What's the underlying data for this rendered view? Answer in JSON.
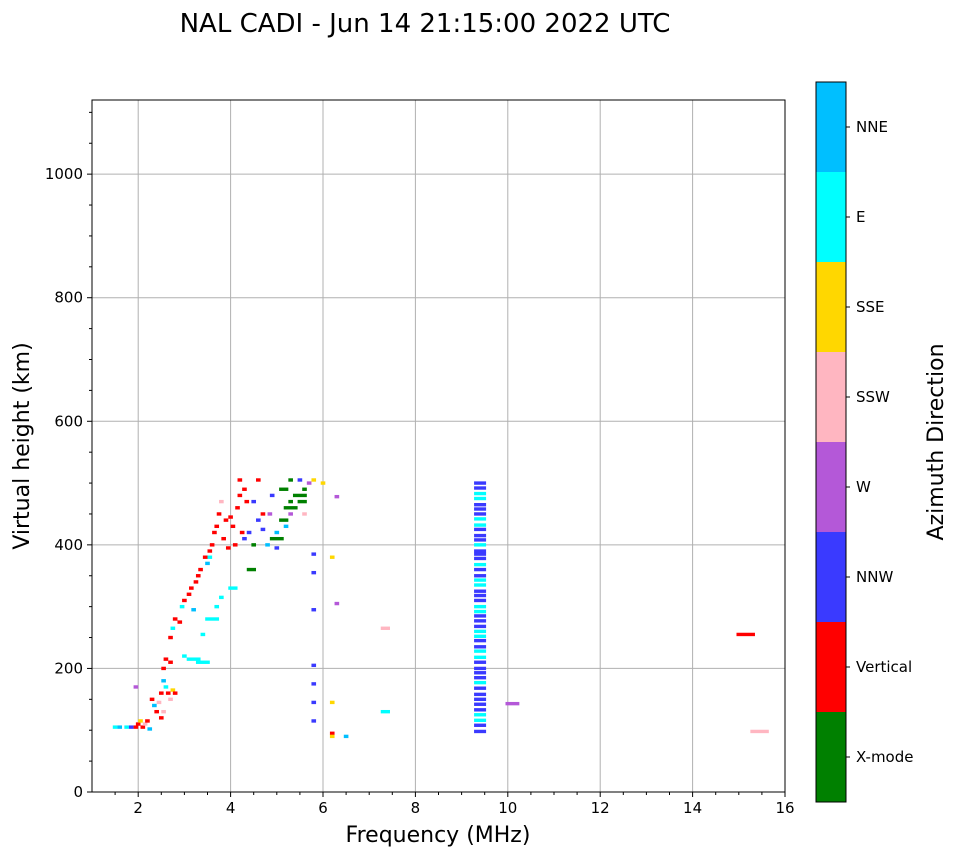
{
  "chart_data": {
    "type": "scatter",
    "title": "NAL CADI - Jun 14 21:15:00 2022 UTC",
    "xlabel": "Frequency (MHz)",
    "ylabel": "Virtual height (km)",
    "xlim": [
      1,
      16
    ],
    "ylim": [
      0,
      1120
    ],
    "xticks": [
      2,
      4,
      6,
      8,
      10,
      12,
      14,
      16
    ],
    "yticks": [
      0,
      200,
      400,
      600,
      800,
      1000
    ],
    "grid": true,
    "colorbar": {
      "label": "Azimuth Direction",
      "categories": [
        "X-mode",
        "Vertical",
        "NNW",
        "W",
        "SSW",
        "SSE",
        "E",
        "NNE"
      ],
      "colors": [
        "#008000",
        "#ff0000",
        "#3a3aff",
        "#b458d8",
        "#ffb6c1",
        "#ffd700",
        "#00ffff",
        "#00bfff"
      ]
    },
    "points_format": "[frequency_MHz, height_km, category_index, cells_wide]",
    "points": [
      [
        1.5,
        105,
        6,
        1
      ],
      [
        1.6,
        105,
        7,
        1
      ],
      [
        1.75,
        105,
        6,
        1
      ],
      [
        1.85,
        105,
        2,
        1
      ],
      [
        1.95,
        105,
        1,
        1
      ],
      [
        2.0,
        110,
        1,
        1
      ],
      [
        2.05,
        115,
        5,
        1
      ],
      [
        2.1,
        105,
        1,
        1
      ],
      [
        2.15,
        110,
        4,
        1
      ],
      [
        2.2,
        115,
        1,
        1
      ],
      [
        2.25,
        102,
        7,
        1
      ],
      [
        1.95,
        170,
        3,
        1
      ],
      [
        2.3,
        150,
        1,
        1
      ],
      [
        2.35,
        140,
        7,
        1
      ],
      [
        2.4,
        130,
        1,
        1
      ],
      [
        2.45,
        145,
        4,
        1
      ],
      [
        2.5,
        160,
        1,
        1
      ],
      [
        2.5,
        120,
        1,
        1
      ],
      [
        2.55,
        130,
        4,
        1
      ],
      [
        2.55,
        200,
        1,
        1
      ],
      [
        2.55,
        180,
        7,
        1
      ],
      [
        2.6,
        170,
        6,
        1
      ],
      [
        2.65,
        160,
        1,
        1
      ],
      [
        2.7,
        150,
        4,
        1
      ],
      [
        2.6,
        215,
        1,
        1
      ],
      [
        2.7,
        210,
        1,
        1
      ],
      [
        2.75,
        165,
        5,
        1
      ],
      [
        2.8,
        160,
        1,
        1
      ],
      [
        2.7,
        250,
        1,
        1
      ],
      [
        2.75,
        265,
        6,
        1
      ],
      [
        2.8,
        280,
        1,
        1
      ],
      [
        2.9,
        275,
        1,
        1
      ],
      [
        2.95,
        300,
        6,
        1
      ],
      [
        3.0,
        310,
        1,
        1
      ],
      [
        3.1,
        320,
        1,
        1
      ],
      [
        3.15,
        330,
        1,
        1
      ],
      [
        3.2,
        295,
        7,
        1
      ],
      [
        3.25,
        340,
        1,
        1
      ],
      [
        3.3,
        350,
        1,
        1
      ],
      [
        3.35,
        360,
        1,
        1
      ],
      [
        3.45,
        380,
        1,
        1
      ],
      [
        3.5,
        370,
        7,
        1
      ],
      [
        3.55,
        390,
        1,
        1
      ],
      [
        3.6,
        400,
        1,
        1
      ],
      [
        3.65,
        420,
        1,
        1
      ],
      [
        3.7,
        430,
        1,
        1
      ],
      [
        3.75,
        450,
        1,
        1
      ],
      [
        3.8,
        470,
        4,
        1
      ],
      [
        3.9,
        440,
        1,
        1
      ],
      [
        4.0,
        445,
        1,
        1
      ],
      [
        4.05,
        430,
        1,
        1
      ],
      [
        4.1,
        400,
        1,
        1
      ],
      [
        4.15,
        460,
        1,
        1
      ],
      [
        4.2,
        480,
        1,
        1
      ],
      [
        4.3,
        490,
        1,
        1
      ],
      [
        4.35,
        470,
        1,
        1
      ],
      [
        3.85,
        410,
        1,
        1
      ],
      [
        3.95,
        395,
        1,
        1
      ],
      [
        4.25,
        420,
        1,
        1
      ],
      [
        3.0,
        220,
        6,
        1
      ],
      [
        3.1,
        215,
        6,
        3
      ],
      [
        3.3,
        210,
        6,
        3
      ],
      [
        3.5,
        280,
        6,
        3
      ],
      [
        3.7,
        300,
        6,
        1
      ],
      [
        3.8,
        315,
        6,
        1
      ],
      [
        4.0,
        330,
        6,
        2
      ],
      [
        3.55,
        380,
        6,
        1
      ],
      [
        3.4,
        255,
        6,
        1
      ],
      [
        4.3,
        410,
        2,
        1
      ],
      [
        4.4,
        420,
        2,
        1
      ],
      [
        4.5,
        400,
        0,
        1
      ],
      [
        4.4,
        360,
        0,
        2
      ],
      [
        4.6,
        440,
        2,
        1
      ],
      [
        4.7,
        450,
        1,
        1
      ],
      [
        4.8,
        400,
        7,
        1
      ],
      [
        4.9,
        410,
        0,
        3
      ],
      [
        5.0,
        420,
        7,
        1
      ],
      [
        5.1,
        440,
        0,
        2
      ],
      [
        5.2,
        430,
        7,
        1
      ],
      [
        5.2,
        460,
        0,
        3
      ],
      [
        5.3,
        470,
        0,
        1
      ],
      [
        5.4,
        480,
        0,
        3
      ],
      [
        5.5,
        470,
        0,
        2
      ],
      [
        5.6,
        490,
        0,
        1
      ],
      [
        5.7,
        500,
        3,
        1
      ],
      [
        5.1,
        490,
        0,
        2
      ],
      [
        4.9,
        480,
        2,
        1
      ],
      [
        4.85,
        450,
        3,
        1
      ],
      [
        5.0,
        395,
        2,
        1
      ],
      [
        5.3,
        450,
        3,
        1
      ],
      [
        5.6,
        450,
        4,
        1
      ],
      [
        5.8,
        505,
        5,
        1
      ],
      [
        6.0,
        500,
        5,
        1
      ],
      [
        6.3,
        478,
        3,
        1
      ],
      [
        4.2,
        505,
        1,
        1
      ],
      [
        4.6,
        505,
        1,
        1
      ],
      [
        5.5,
        505,
        2,
        1
      ],
      [
        5.3,
        505,
        0,
        1
      ],
      [
        4.5,
        470,
        2,
        1
      ],
      [
        4.7,
        425,
        2,
        1
      ],
      [
        5.8,
        385,
        2,
        1
      ],
      [
        5.8,
        355,
        2,
        1
      ],
      [
        5.8,
        295,
        2,
        1
      ],
      [
        5.8,
        205,
        2,
        1
      ],
      [
        5.8,
        175,
        2,
        1
      ],
      [
        5.8,
        145,
        2,
        1
      ],
      [
        5.8,
        115,
        2,
        1
      ],
      [
        6.2,
        380,
        5,
        1
      ],
      [
        6.2,
        145,
        5,
        1
      ],
      [
        6.2,
        95,
        1,
        1
      ],
      [
        6.2,
        90,
        5,
        1
      ],
      [
        6.3,
        305,
        3,
        1
      ],
      [
        6.5,
        90,
        7,
        1
      ],
      [
        7.3,
        265,
        4,
        2
      ],
      [
        7.3,
        130,
        6,
        2
      ],
      [
        10.0,
        143,
        3,
        3
      ],
      [
        15.0,
        255,
        1,
        4
      ],
      [
        15.3,
        98,
        4,
        4
      ]
    ],
    "column": {
      "frequency": 9.4,
      "heights": [
        500,
        492,
        483,
        475,
        465,
        458,
        450,
        442,
        432,
        425,
        415,
        408,
        400,
        390,
        385,
        378,
        368,
        360,
        350,
        343,
        335,
        325,
        318,
        310,
        300,
        292,
        285,
        277,
        268,
        260,
        252,
        245,
        235,
        228,
        218,
        210,
        200,
        193,
        185,
        177,
        168,
        158,
        150,
        142,
        133,
        125,
        116,
        108,
        98
      ],
      "categories": [
        2,
        2,
        6,
        6,
        2,
        2,
        2,
        6,
        6,
        2,
        2,
        2,
        6,
        2,
        2,
        2,
        6,
        2,
        2,
        6,
        6,
        2,
        2,
        2,
        6,
        6,
        2,
        2,
        2,
        6,
        6,
        2,
        2,
        6,
        6,
        2,
        2,
        2,
        2,
        6,
        2,
        2,
        2,
        2,
        2,
        6,
        6,
        2,
        2
      ]
    }
  }
}
